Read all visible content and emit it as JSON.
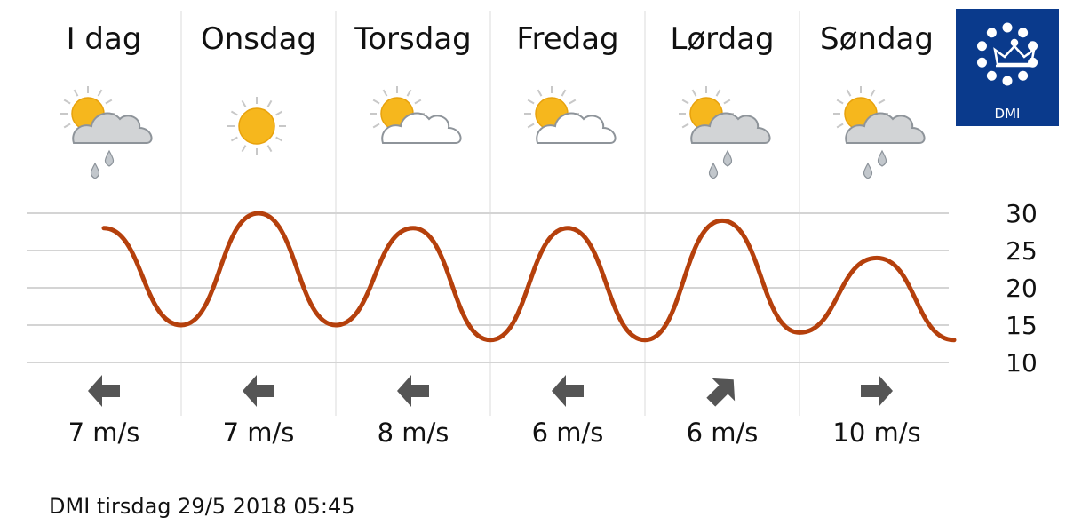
{
  "chart_data": {
    "type": "line",
    "categories": [
      "I dag",
      "Onsdag",
      "Torsdag",
      "Fredag",
      "Lørdag",
      "Søndag"
    ],
    "series": [
      {
        "x": [
          0.0,
          0.5,
          1.0,
          1.5,
          2.0,
          2.5,
          3.0,
          3.5,
          4.0,
          4.5,
          5.0,
          5.5
        ],
        "values": [
          28,
          15,
          30,
          15,
          28,
          13,
          28,
          13,
          29,
          14,
          24,
          13
        ],
        "color": "#b5400c"
      }
    ],
    "yticks": [
      30,
      25,
      20,
      15,
      10
    ],
    "ylim": [
      10,
      30
    ],
    "grid": true,
    "weather_icons": [
      "sun-cloud-rain",
      "sun",
      "sun-cloud",
      "sun-cloud",
      "sun-cloud-rain",
      "sun-cloud-rain"
    ],
    "wind": [
      {
        "direction": "west",
        "speed": "7 m/s"
      },
      {
        "direction": "west",
        "speed": "7 m/s"
      },
      {
        "direction": "west",
        "speed": "8 m/s"
      },
      {
        "direction": "west",
        "speed": "6 m/s"
      },
      {
        "direction": "northeast",
        "speed": "6 m/s"
      },
      {
        "direction": "east",
        "speed": "10 m/s"
      }
    ]
  },
  "logo": {
    "text": "DMI",
    "color": "#0a3a8c"
  },
  "footer": {
    "text": "DMI tirsdag 29/5 2018  05:45"
  }
}
